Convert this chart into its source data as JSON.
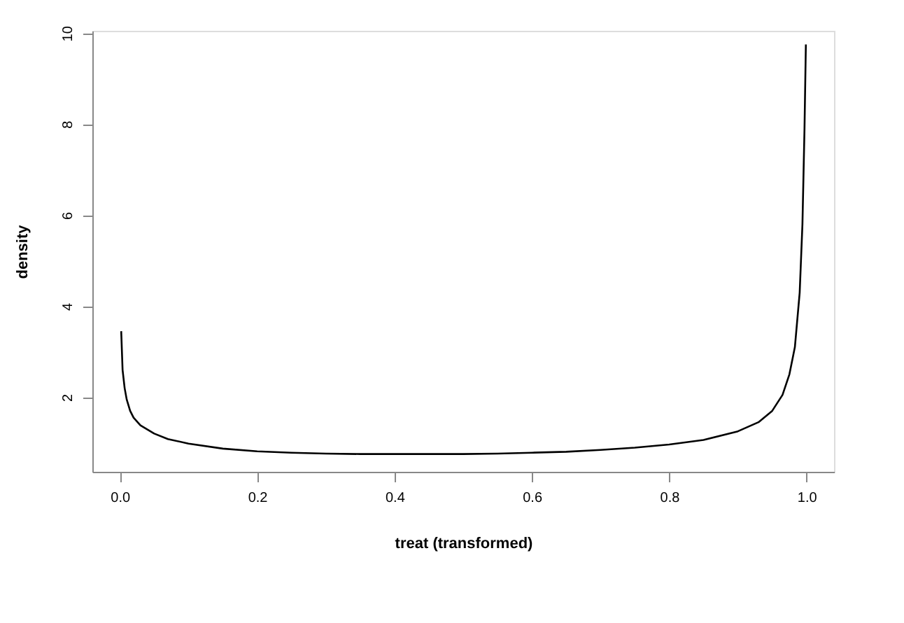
{
  "chart_data": {
    "type": "line",
    "xlabel": "treat (transformed)",
    "ylabel": "density",
    "xlim": [
      -0.04,
      1.04
    ],
    "xticks": [
      {
        "value": 0,
        "label": "0.0"
      },
      0.2,
      0.4,
      0.6,
      0.8,
      {
        "value": 1,
        "label": "1.0"
      }
    ],
    "ylim": [
      0.36,
      10.05
    ],
    "yticks": [
      2,
      4,
      6,
      8,
      10
    ],
    "grid": false,
    "marker": "none",
    "line_style": "solid",
    "series": [
      {
        "color": "#000000",
        "x": [
          0.002,
          0.004,
          0.007,
          0.01,
          0.015,
          0.02,
          0.03,
          0.05,
          0.07,
          0.1,
          0.15,
          0.2,
          0.25,
          0.3,
          0.35,
          0.4,
          0.45,
          0.5,
          0.55,
          0.6,
          0.65,
          0.7,
          0.75,
          0.8,
          0.85,
          0.9,
          0.93,
          0.95,
          0.965,
          0.975,
          0.983,
          0.99,
          0.994,
          0.997,
          0.999
        ],
        "values": [
          3.45,
          2.6,
          2.2,
          1.95,
          1.7,
          1.55,
          1.38,
          1.2,
          1.08,
          0.98,
          0.87,
          0.81,
          0.78,
          0.76,
          0.75,
          0.75,
          0.75,
          0.75,
          0.76,
          0.78,
          0.8,
          0.84,
          0.89,
          0.96,
          1.06,
          1.25,
          1.45,
          1.7,
          2.05,
          2.5,
          3.1,
          4.3,
          5.8,
          7.9,
          9.75
        ]
      }
    ]
  }
}
